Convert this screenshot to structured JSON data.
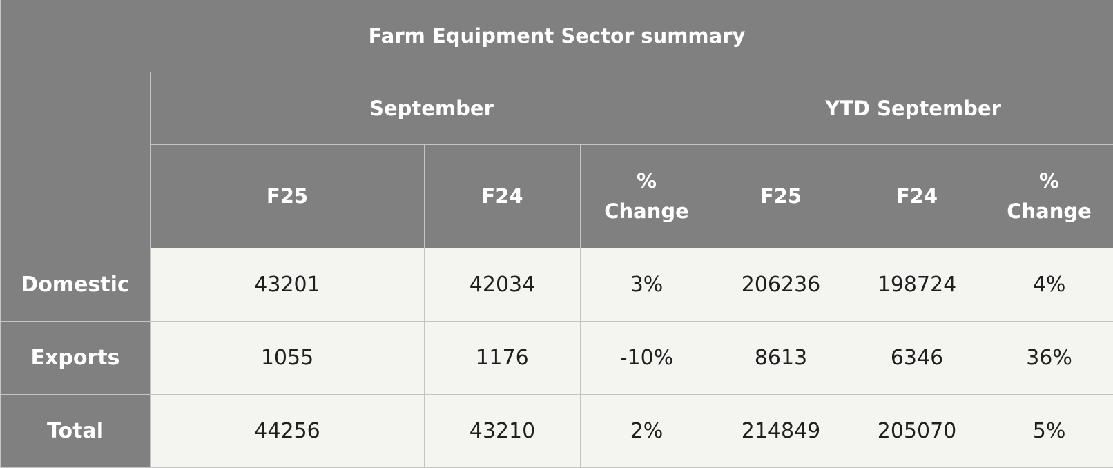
{
  "table": {
    "title": "Farm Equipment Sector summary",
    "groups": [
      "September",
      "YTD September"
    ],
    "sub_headers": [
      "F25",
      "F24",
      "%\nChange",
      "F25",
      "F24",
      "%\nChange"
    ],
    "rows": [
      {
        "label": "Domestic",
        "values": [
          "43201",
          "42034",
          "3%",
          "206236",
          "198724",
          "4%"
        ]
      },
      {
        "label": "Exports",
        "values": [
          "1055",
          "1176",
          "-10%",
          "8613",
          "6346",
          "36%"
        ]
      },
      {
        "label": "Total",
        "values": [
          "44256",
          "43210",
          "2%",
          "214849",
          "205070",
          "5%"
        ]
      }
    ]
  }
}
